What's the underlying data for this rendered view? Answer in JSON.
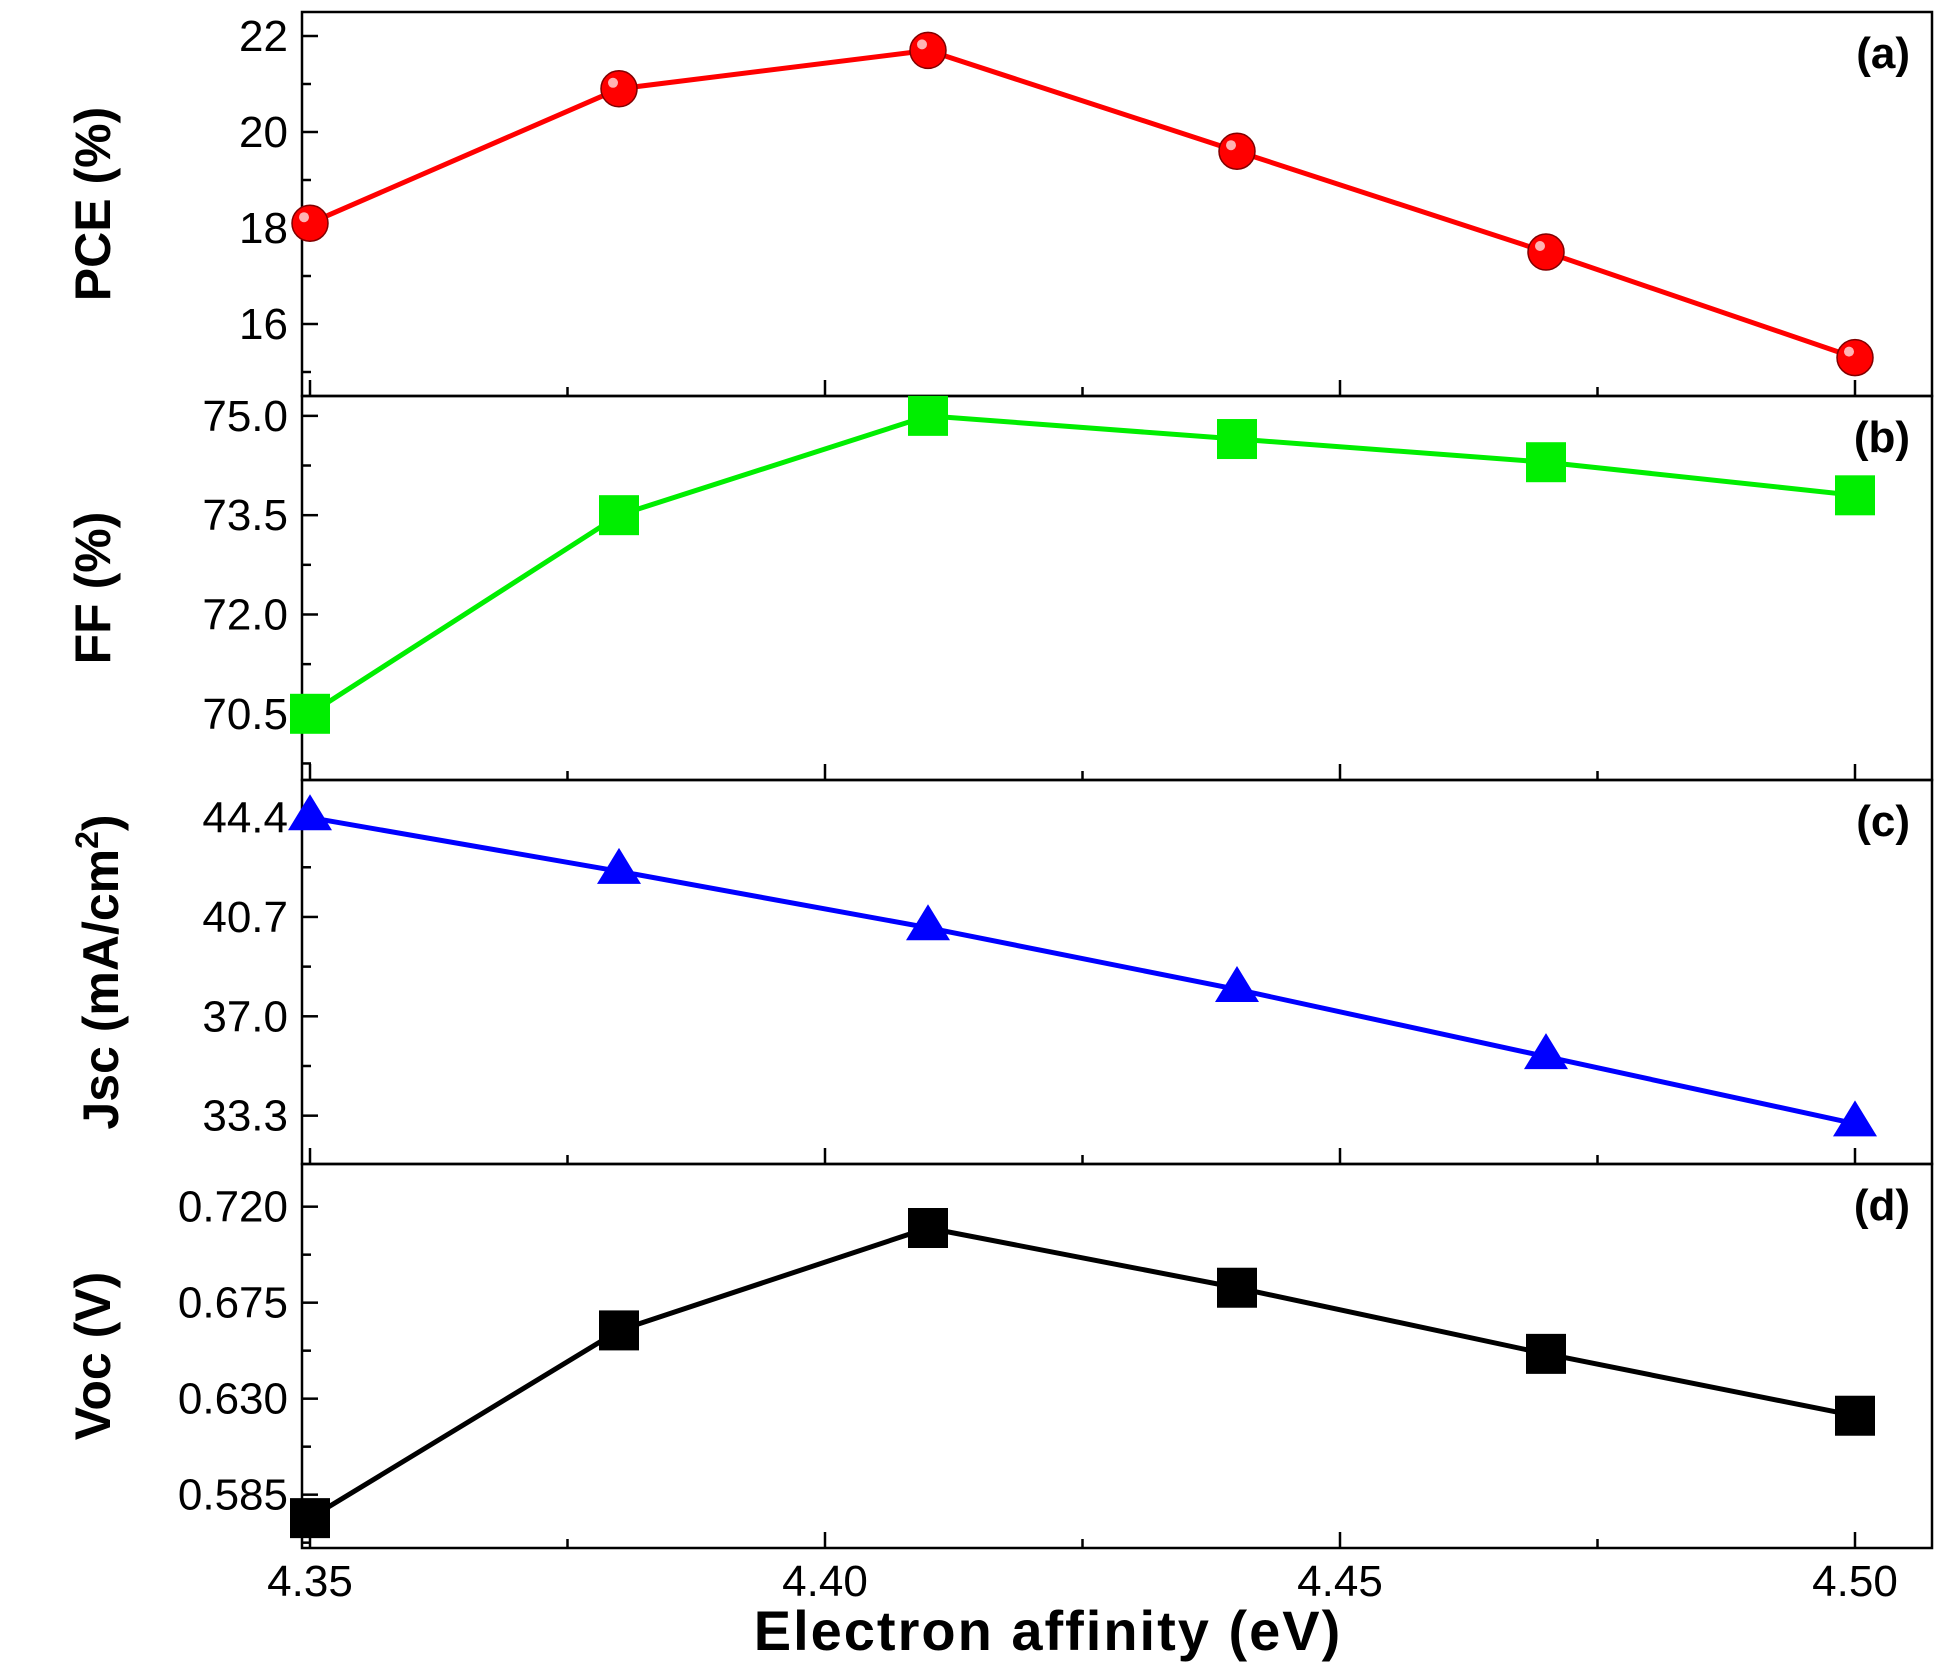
{
  "chart_data": {
    "type": "line",
    "xlabel": "Electron affinity (eV)",
    "x": [
      4.35,
      4.38,
      4.41,
      4.44,
      4.47,
      4.5
    ],
    "xlim": [
      4.35,
      4.51
    ],
    "x_ticks": [
      "4.35",
      "4.40",
      "4.45",
      "4.50"
    ],
    "x_tick_values": [
      4.35,
      4.4,
      4.45,
      4.5
    ],
    "panels": [
      {
        "label": "(a)",
        "ylabel": "PCE (%)",
        "color": "#ff0000",
        "marker": "circle",
        "values": [
          18.1,
          20.9,
          21.7,
          19.6,
          17.5,
          15.3
        ],
        "ylim": [
          14.5,
          22.5
        ],
        "y_ticks": [
          "16",
          "18",
          "20",
          "22"
        ],
        "y_tick_values": [
          16,
          18,
          20,
          22
        ]
      },
      {
        "label": "(b)",
        "ylabel": "FF (%)",
        "color": "#00ee00",
        "marker": "square",
        "values": [
          70.5,
          73.5,
          75.0,
          74.65,
          74.3,
          73.8
        ],
        "ylim": [
          69.5,
          75.3
        ],
        "y_ticks": [
          "70.5",
          "72.0",
          "73.5",
          "75.0"
        ],
        "y_tick_values": [
          70.5,
          72.0,
          73.5,
          75.0
        ]
      },
      {
        "label": "(c)",
        "ylabel": "Jsc (mA/cm",
        "ylabel_sup": "2",
        "ylabel_end": ")",
        "color": "#0000ff",
        "marker": "triangle",
        "values": [
          44.4,
          42.4,
          40.3,
          38.0,
          35.5,
          33.0
        ],
        "ylim": [
          31.5,
          45.8
        ],
        "y_ticks": [
          "33.3",
          "37.0",
          "40.7",
          "44.4"
        ],
        "y_tick_values": [
          33.3,
          37.0,
          40.7,
          44.4
        ]
      },
      {
        "label": "(d)",
        "ylabel": "Voc (V)",
        "color": "#000000",
        "marker": "square",
        "values": [
          0.574,
          0.662,
          0.71,
          0.682,
          0.651,
          0.622
        ],
        "ylim": [
          0.56,
          0.74
        ],
        "y_ticks": [
          "0.585",
          "0.630",
          "0.675",
          "0.720"
        ],
        "y_tick_values": [
          0.585,
          0.63,
          0.675,
          0.72
        ]
      }
    ]
  }
}
